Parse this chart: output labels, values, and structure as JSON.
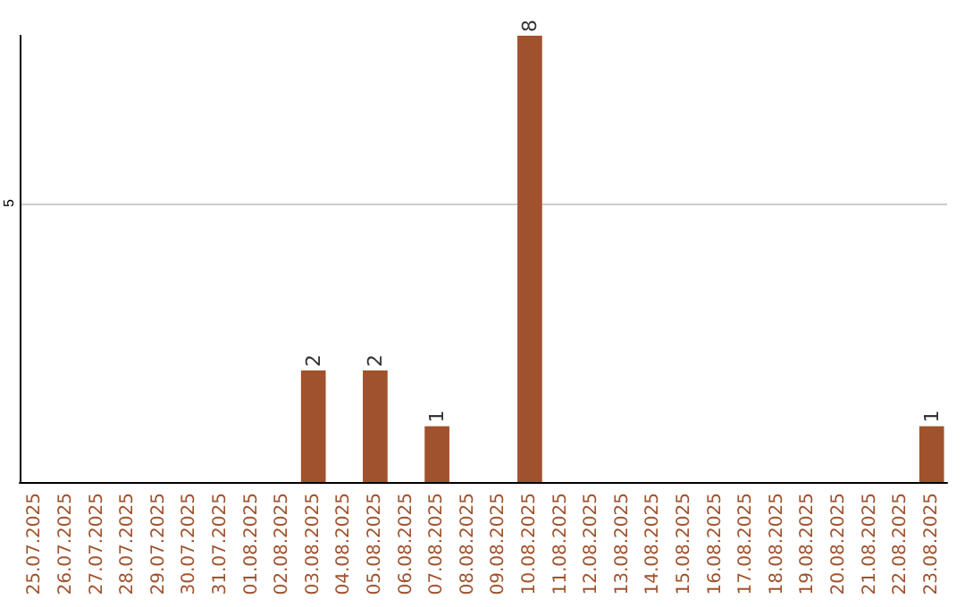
{
  "chart_data": {
    "type": "bar",
    "categories": [
      "25.07.2025",
      "26.07.2025",
      "27.07.2025",
      "28.07.2025",
      "29.07.2025",
      "30.07.2025",
      "31.07.2025",
      "01.08.2025",
      "02.08.2025",
      "03.08.2025",
      "04.08.2025",
      "05.08.2025",
      "06.08.2025",
      "07.08.2025",
      "08.08.2025",
      "09.08.2025",
      "10.08.2025",
      "11.08.2025",
      "12.08.2025",
      "13.08.2025",
      "14.08.2025",
      "15.08.2025",
      "16.08.2025",
      "17.08.2025",
      "18.08.2025",
      "19.08.2025",
      "20.08.2025",
      "21.08.2025",
      "22.08.2025",
      "23.08.2025"
    ],
    "values": [
      0,
      0,
      0,
      0,
      0,
      0,
      0,
      0,
      0,
      2,
      0,
      2,
      0,
      1,
      0,
      0,
      8,
      0,
      0,
      0,
      0,
      0,
      0,
      0,
      0,
      0,
      0,
      0,
      0,
      1
    ],
    "value_labels": [
      null,
      null,
      null,
      null,
      null,
      null,
      null,
      null,
      null,
      "2",
      null,
      "2",
      null,
      "1",
      null,
      null,
      "8",
      null,
      null,
      null,
      null,
      null,
      null,
      null,
      null,
      null,
      null,
      null,
      null,
      "1"
    ],
    "color": "#a0522d",
    "ylim": [
      0,
      8
    ],
    "yticks": [
      5
    ],
    "grid": "y"
  }
}
